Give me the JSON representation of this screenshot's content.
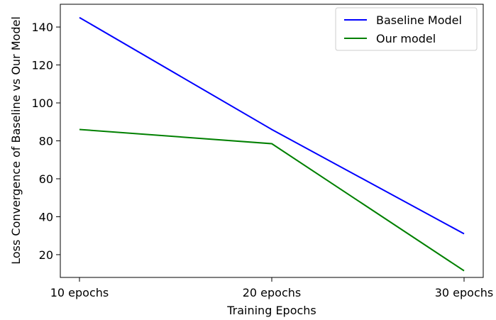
{
  "chart_data": {
    "type": "line",
    "categories": [
      "10 epochs",
      "20 epochs",
      "30 epochs"
    ],
    "series": [
      {
        "name": "Baseline Model",
        "color": "#0000ff",
        "values": [
          145,
          86,
          31
        ]
      },
      {
        "name": "Our model",
        "color": "#008000",
        "values": [
          86,
          78.5,
          11.5
        ]
      }
    ],
    "xlabel": "Training Epochs",
    "ylabel": "Loss Convergence of Baseline vs Our Model",
    "ylim": [
      8,
      152
    ],
    "yticks": [
      20,
      40,
      60,
      80,
      100,
      120,
      140
    ],
    "grid": false,
    "legend_position": "top-right"
  }
}
